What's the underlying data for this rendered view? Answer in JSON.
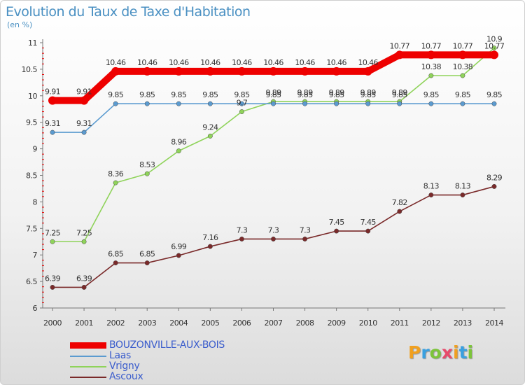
{
  "header": {
    "title": "Evolution du Taux de Taxe d'Habitation",
    "subtitle": "(en %)"
  },
  "logo": {
    "text": "Proxiti",
    "letters": [
      {
        "ch": "P",
        "color": "#f0a020"
      },
      {
        "ch": "r",
        "color": "#3aa0e0"
      },
      {
        "ch": "o",
        "color": "#7cc43a"
      },
      {
        "ch": "x",
        "color": "#e84a6a"
      },
      {
        "ch": "i",
        "color": "#f0a020"
      },
      {
        "ch": "t",
        "color": "#3aa0e0"
      },
      {
        "ch": "i",
        "color": "#7cc43a"
      }
    ]
  },
  "chart_data": {
    "type": "line",
    "title": "Evolution du Taux de Taxe d'Habitation",
    "subtitle": "(en %)",
    "xlabel": "",
    "ylabel": "",
    "x": [
      "2000",
      "2001",
      "2002",
      "2003",
      "2004",
      "2005",
      "2006",
      "2007",
      "2008",
      "2009",
      "2010",
      "2011",
      "2012",
      "2013",
      "2014"
    ],
    "ylim": [
      6,
      11
    ],
    "yticks": [
      "6",
      "6.5",
      "7",
      "7.5",
      "8",
      "8.5",
      "9",
      "9.5",
      "10",
      "10.5",
      "11"
    ],
    "grid": false,
    "legend": "bottom-left",
    "series": [
      {
        "name": "BOUZONVILLE-AUX-BOIS",
        "color": "#ee0000",
        "values": [
          9.91,
          9.91,
          10.46,
          10.46,
          10.46,
          10.46,
          10.46,
          10.46,
          10.46,
          10.46,
          10.46,
          10.77,
          10.77,
          10.77,
          10.77
        ],
        "labels": [
          "9.91",
          "9.91",
          "10.46",
          "10.46",
          "10.46",
          "10.46",
          "10.46",
          "10.46",
          "10.46",
          "10.46",
          "10.46",
          "10.77",
          "10.77",
          "10.77",
          "10.77"
        ]
      },
      {
        "name": "Laas",
        "color": "#5b9bd0",
        "values": [
          9.31,
          9.31,
          9.85,
          9.85,
          9.85,
          9.85,
          9.85,
          9.85,
          9.85,
          9.85,
          9.85,
          9.85,
          9.85,
          9.85,
          9.85
        ],
        "labels": [
          "9.31",
          "9.31",
          "9.85",
          "9.85",
          "9.85",
          "9.85",
          "9.85",
          "9.85",
          "9.85",
          "9.85",
          "9.85",
          "9.85",
          "9.85",
          "9.85",
          "9.85"
        ]
      },
      {
        "name": "Vrigny",
        "color": "#8fd35a",
        "values": [
          7.25,
          7.25,
          8.36,
          8.53,
          8.96,
          9.24,
          9.7,
          9.89,
          9.89,
          9.89,
          9.89,
          9.89,
          10.38,
          10.38,
          10.9
        ],
        "labels": [
          "7.25",
          "7.25",
          "8.36",
          "8.53",
          "8.96",
          "9.24",
          "9.7",
          "9.89",
          "9.89",
          "9.89",
          "9.89",
          "9.89",
          "10.38",
          "10.38",
          "10.9"
        ]
      },
      {
        "name": "Ascoux",
        "color": "#7a2a2a",
        "values": [
          6.39,
          6.39,
          6.85,
          6.85,
          6.99,
          7.16,
          7.3,
          7.3,
          7.3,
          7.45,
          7.45,
          7.82,
          8.13,
          8.13,
          8.29
        ],
        "labels": [
          "6.39",
          "6.39",
          "6.85",
          "6.85",
          "6.99",
          "7.16",
          "7.3",
          "7.3",
          "7.3",
          "7.45",
          "7.45",
          "7.82",
          "8.13",
          "8.13",
          "8.29"
        ]
      }
    ]
  }
}
